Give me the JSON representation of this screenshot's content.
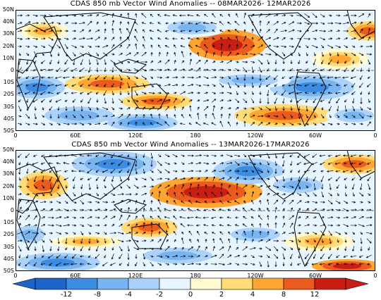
{
  "panels": [
    {
      "title": "CDAS 850 mb Vector Wind Anomalies -- 08MAR2026- 12MAR2026",
      "seed": 7
    },
    {
      "title": "CDAS 850 mb Vector Wind Anomalies -- 13MAR2026-17MAR2026",
      "seed": 19
    }
  ],
  "lat_labels": [
    "50N",
    "40N",
    "30N",
    "20N",
    "10N",
    "0",
    "10S",
    "20S",
    "30S",
    "40S",
    "50S"
  ],
  "lon_labels": [
    "0",
    "60E",
    "120E",
    "180",
    "120W",
    "60W",
    "0"
  ],
  "colorbar": {
    "labels": [
      "-12",
      "-8",
      "-4",
      "-2",
      "0",
      "2",
      "4",
      "8",
      "12"
    ],
    "colors": [
      "#1e64c8",
      "#3c8ce1",
      "#78b4f0",
      "#aad2fa",
      "#e6f5ff",
      "#fffad2",
      "#ffdc78",
      "#ffa532",
      "#eb5a1e",
      "#c81e14"
    ]
  },
  "palette": {
    "strong_neg": "#1e64c8",
    "neg": "#3c8ce1",
    "weak_neg": "#78b4f0",
    "faint_neg": "#aad2fa",
    "neutral": "#e6f5ff",
    "faint_pos": "#fffad2",
    "weak_pos": "#ffdc78",
    "pos": "#ffa532",
    "strong_pos": "#eb5a1e",
    "very_strong_pos": "#c81e14"
  }
}
